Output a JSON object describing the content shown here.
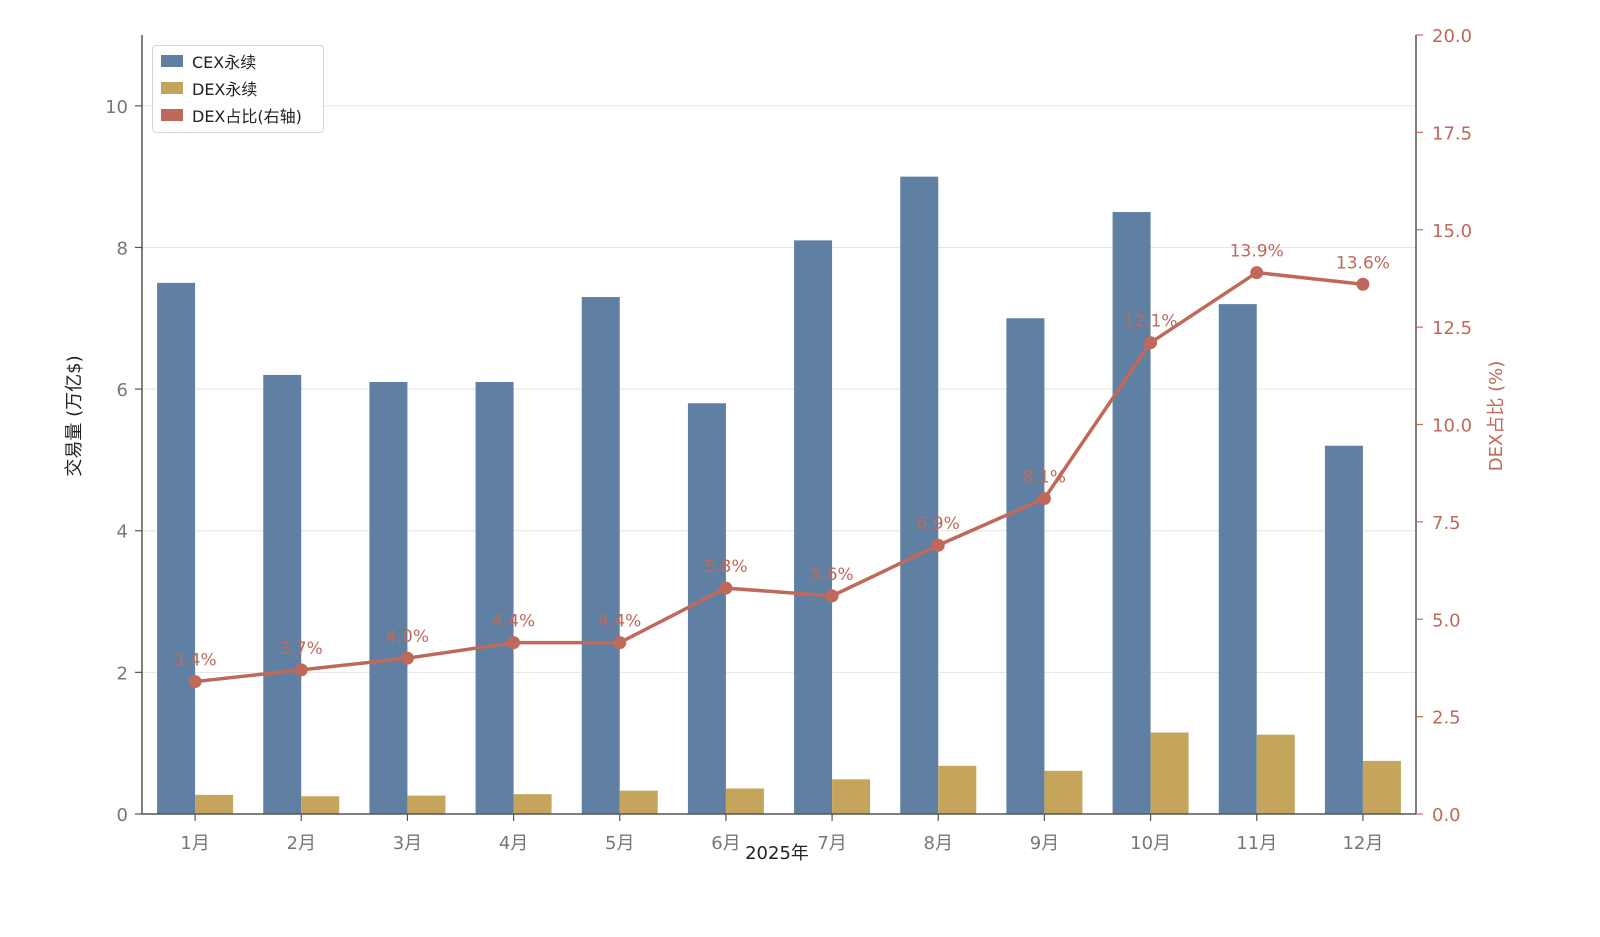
{
  "chart_data": {
    "type": "bar",
    "categories": [
      "1月",
      "2月",
      "3月",
      "4月",
      "5月",
      "6月",
      "7月",
      "8月",
      "9月",
      "10月",
      "11月",
      "12月"
    ],
    "series": [
      {
        "name": "CEX永续",
        "type": "bar",
        "axis": "left",
        "color": "#6080a3",
        "values": [
          7.5,
          6.2,
          6.1,
          6.1,
          7.3,
          5.8,
          8.1,
          9.0,
          7.0,
          8.5,
          7.2,
          5.2
        ]
      },
      {
        "name": "DEX永续",
        "type": "bar",
        "axis": "left",
        "color": "#c4a55b",
        "values": [
          0.27,
          0.25,
          0.26,
          0.28,
          0.33,
          0.36,
          0.49,
          0.68,
          0.61,
          1.15,
          1.12,
          0.75
        ]
      },
      {
        "name": "DEX占比(右轴)",
        "type": "line",
        "axis": "right",
        "color": "#c0695a",
        "values": [
          3.4,
          3.7,
          4.0,
          4.4,
          4.4,
          5.8,
          5.6,
          6.9,
          8.1,
          12.1,
          13.9,
          13.6
        ],
        "labels": [
          "3.4%",
          "3.7%",
          "4.0%",
          "4.4%",
          "4.4%",
          "5.8%",
          "5.6%",
          "6.9%",
          "8.1%",
          "12.1%",
          "13.9%",
          "13.6%"
        ]
      }
    ],
    "xlabel": "2025年",
    "ylabel": "交易量 (万亿$)",
    "y2label": "DEX占比 (%)",
    "ylim": [
      0,
      11
    ],
    "y2lim": [
      0,
      20
    ],
    "yticks": [
      "0",
      "2",
      "4",
      "6",
      "8",
      "10"
    ],
    "y2ticks": [
      "0.0",
      "2.5",
      "5.0",
      "7.5",
      "10.0",
      "12.5",
      "15.0",
      "17.5",
      "20.0"
    ],
    "grid": true,
    "legend_position": "top-left"
  }
}
